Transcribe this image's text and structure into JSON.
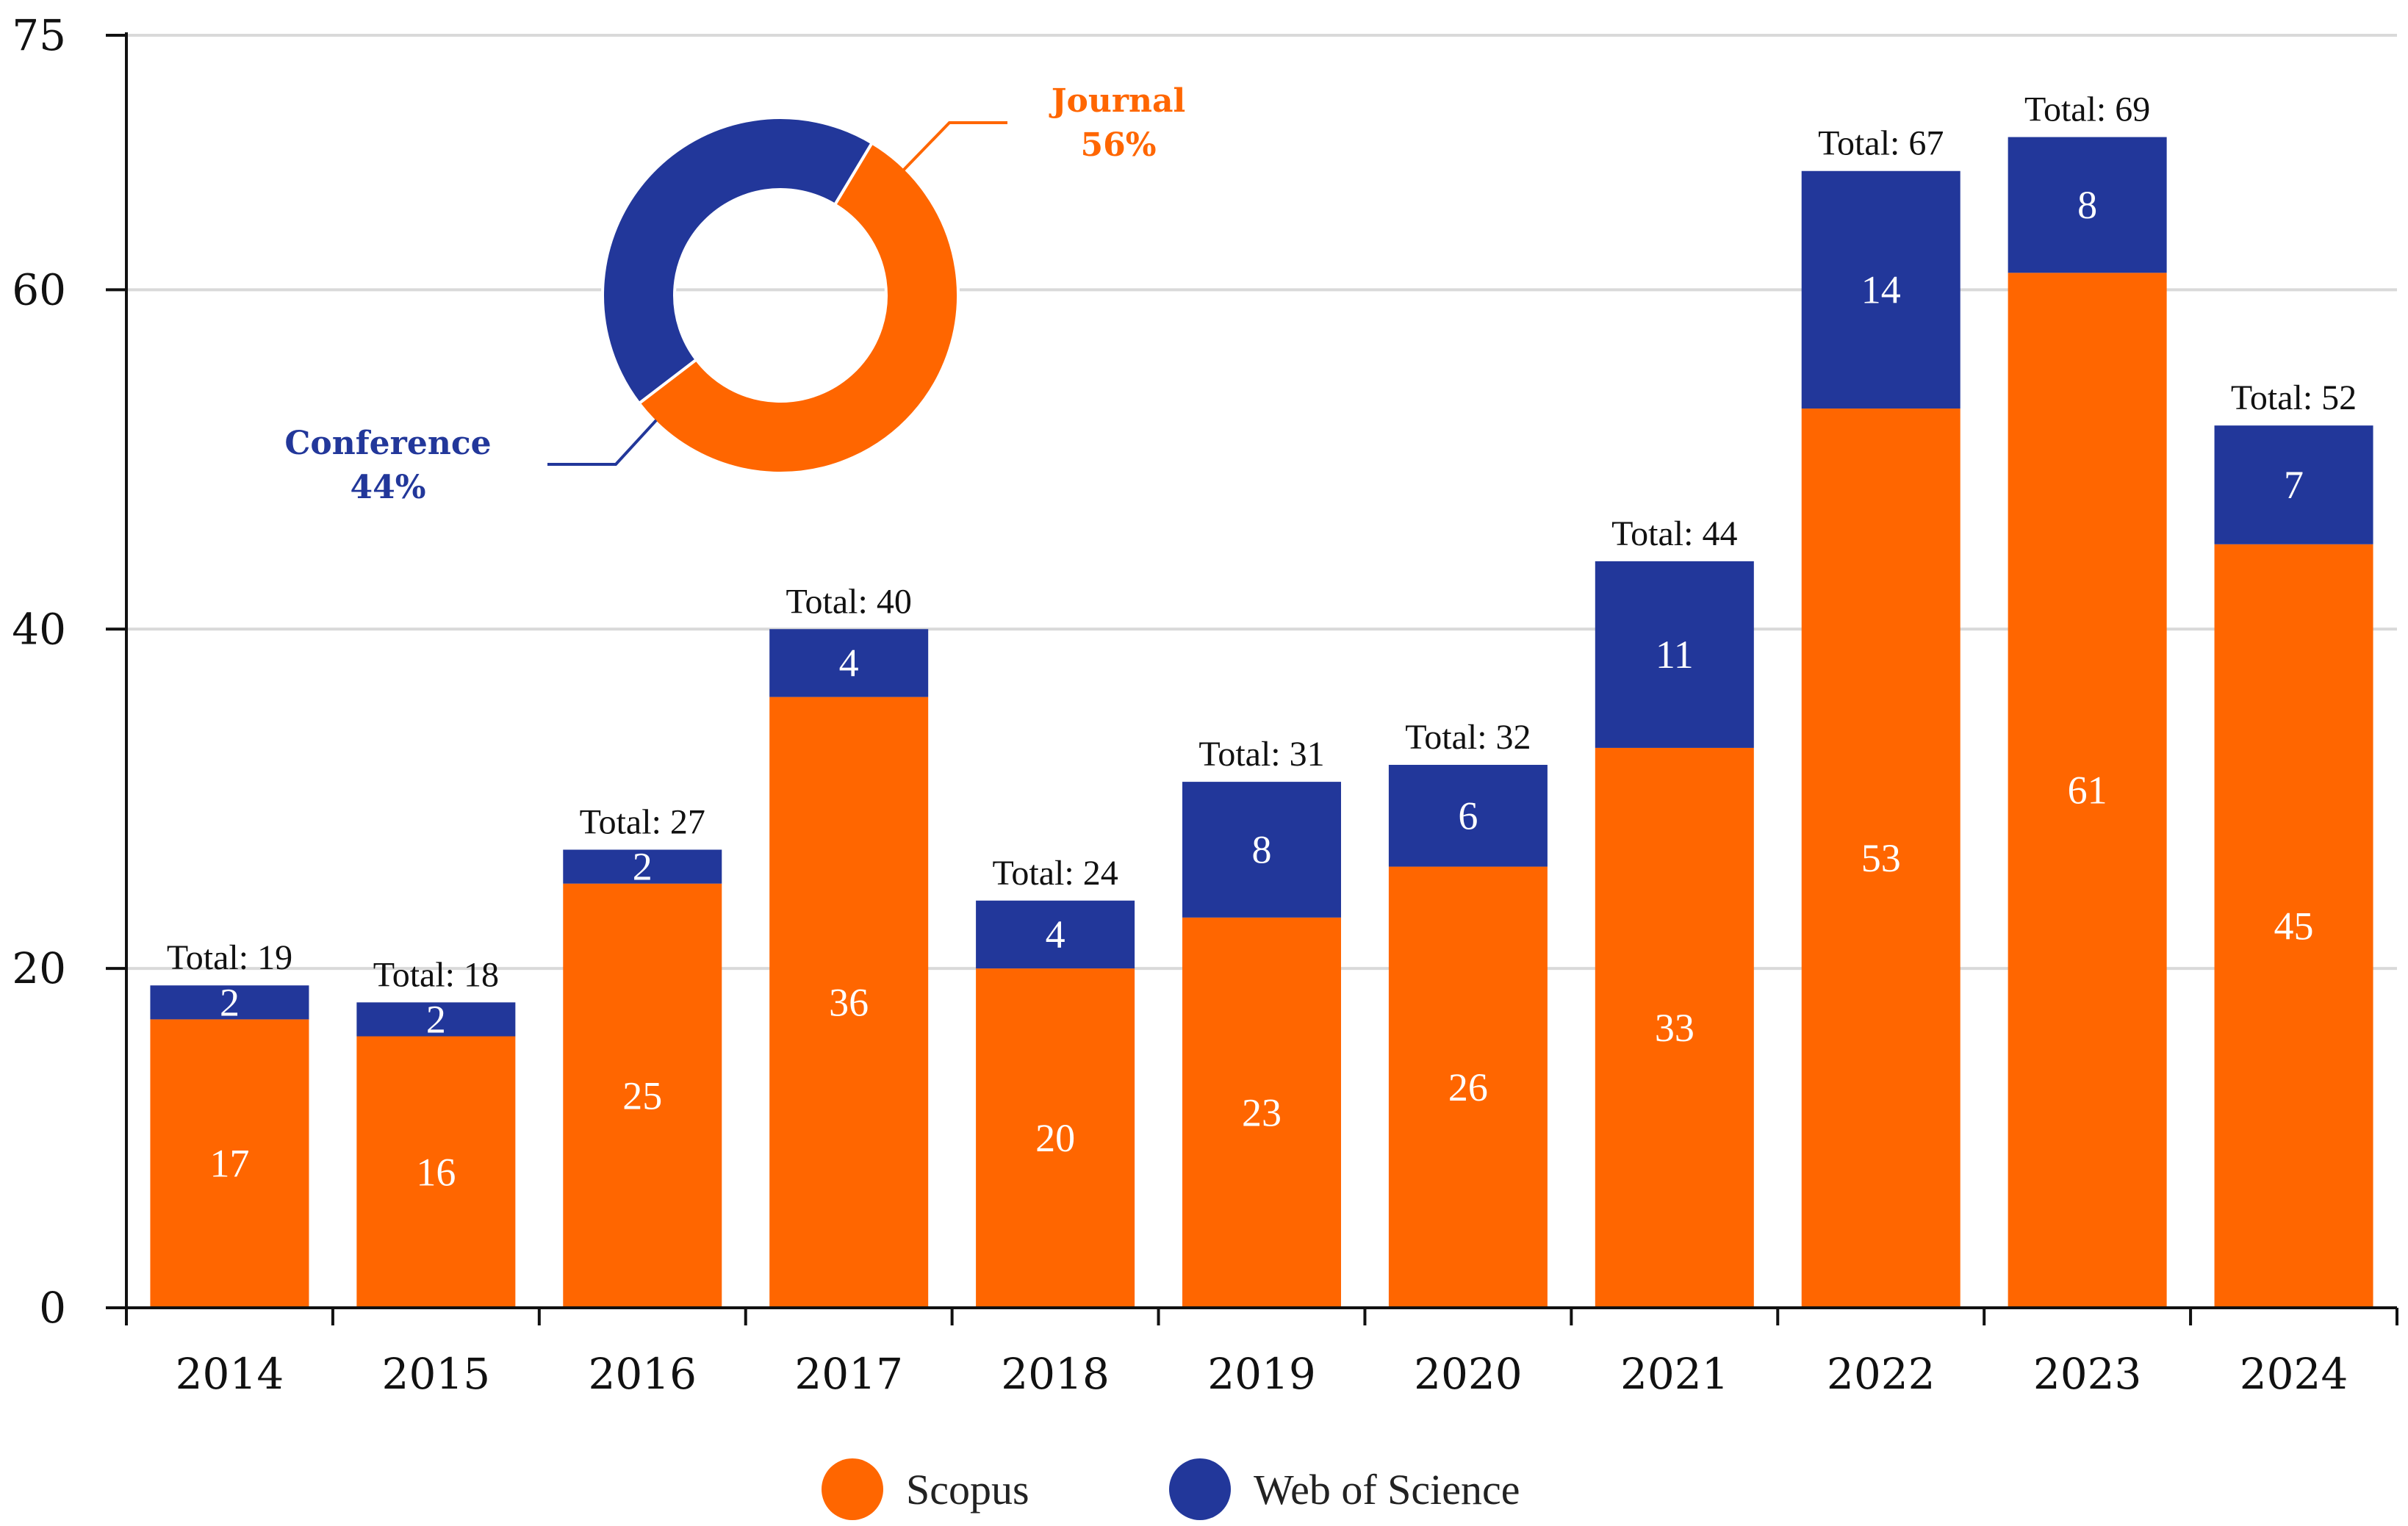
{
  "colors": {
    "scopus": "#ff6600",
    "wos": "#22379a",
    "grid": "#d9d9d9",
    "axis": "#111111"
  },
  "chart_data": [
    {
      "type": "bar",
      "stacked": true,
      "categories": [
        "2014",
        "2015",
        "2016",
        "2017",
        "2018",
        "2019",
        "2020",
        "2021",
        "2022",
        "2023",
        "2024"
      ],
      "series": [
        {
          "name": "Scopus",
          "values": [
            17,
            16,
            25,
            36,
            20,
            23,
            26,
            33,
            53,
            61,
            45
          ]
        },
        {
          "name": "Web of Science",
          "values": [
            2,
            2,
            2,
            4,
            4,
            8,
            6,
            11,
            14,
            8,
            7
          ]
        }
      ],
      "totals": [
        19,
        18,
        27,
        40,
        24,
        31,
        32,
        44,
        67,
        69,
        52
      ],
      "total_prefix": "Total: ",
      "ylim": [
        0,
        75
      ],
      "yticks": [
        0,
        20,
        40,
        60,
        75
      ],
      "grid": true,
      "legend": "bottom-center"
    },
    {
      "type": "pie",
      "donut": true,
      "labels": [
        "Journal",
        "Conference"
      ],
      "percent_labels": [
        "56%",
        "44%"
      ],
      "values": [
        56,
        44
      ]
    }
  ]
}
